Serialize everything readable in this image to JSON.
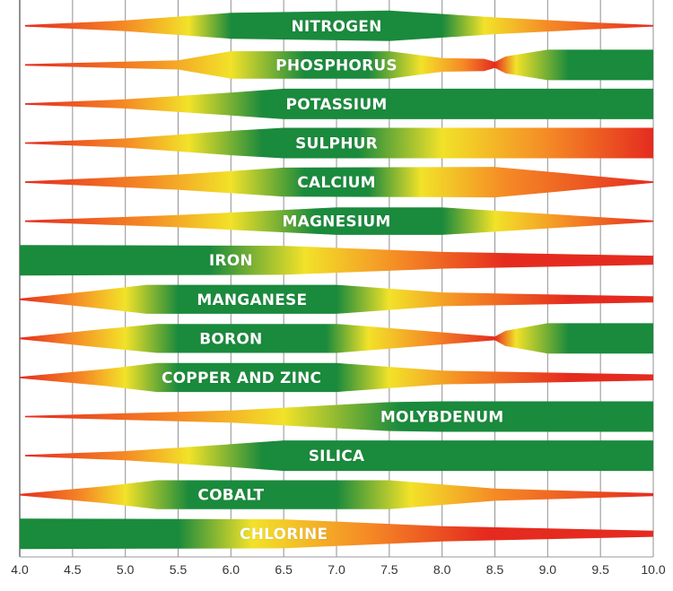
{
  "chart_data": {
    "type": "area",
    "title": "",
    "xlabel": "",
    "ylabel": "",
    "xlim": [
      4.0,
      10.0
    ],
    "x_ticks": [
      "4.0",
      "4.5",
      "5.0",
      "5.5",
      "6.0",
      "6.5",
      "7.0",
      "7.5",
      "8.0",
      "8.5",
      "9.0",
      "9.5",
      "10.0"
    ],
    "grid": true,
    "color_scale": {
      "red": "#e52b1f",
      "orange": "#f58a25",
      "yellow": "#f2e229",
      "green": "#1a8a3c"
    },
    "series": [
      {
        "name": "NITROGEN",
        "label_x": 7.0,
        "profile": [
          [
            4.05,
            0.05
          ],
          [
            5.0,
            0.35
          ],
          [
            6.0,
            0.85
          ],
          [
            7.5,
            1.0
          ],
          [
            8.5,
            0.55
          ],
          [
            9.5,
            0.2
          ],
          [
            10.0,
            0.05
          ]
        ],
        "colors": [
          [
            4.05,
            "#e52b1f"
          ],
          [
            5.0,
            "#f58a25"
          ],
          [
            5.6,
            "#f2e229"
          ],
          [
            6.0,
            "#1a8a3c"
          ],
          [
            8.0,
            "#1a8a3c"
          ],
          [
            8.4,
            "#f2e229"
          ],
          [
            9.0,
            "#f58a25"
          ],
          [
            10.0,
            "#e52b1f"
          ]
        ]
      },
      {
        "name": "PHOSPHORUS",
        "label_x": 7.0,
        "profile": [
          [
            4.05,
            0.05
          ],
          [
            5.5,
            0.3
          ],
          [
            6.0,
            0.9
          ],
          [
            7.5,
            0.9
          ],
          [
            8.0,
            0.45
          ],
          [
            8.4,
            0.4
          ],
          [
            8.5,
            0.2
          ],
          [
            8.6,
            0.55
          ],
          [
            9.0,
            1.0
          ],
          [
            10.0,
            1.0
          ]
        ],
        "colors": [
          [
            4.05,
            "#e52b1f"
          ],
          [
            5.2,
            "#f58a25"
          ],
          [
            6.0,
            "#f2e229"
          ],
          [
            6.7,
            "#1a8a3c"
          ],
          [
            7.3,
            "#1a8a3c"
          ],
          [
            7.8,
            "#f2e229"
          ],
          [
            8.2,
            "#f58a25"
          ],
          [
            8.5,
            "#e52b1f"
          ],
          [
            8.7,
            "#f2e229"
          ],
          [
            9.2,
            "#1a8a3c"
          ],
          [
            10.0,
            "#1a8a3c"
          ]
        ]
      },
      {
        "name": "POTASSIUM",
        "label_x": 7.0,
        "profile": [
          [
            4.05,
            0.05
          ],
          [
            5.0,
            0.3
          ],
          [
            6.0,
            0.75
          ],
          [
            6.5,
            1.0
          ],
          [
            10.0,
            1.0
          ]
        ],
        "colors": [
          [
            4.05,
            "#e52b1f"
          ],
          [
            5.0,
            "#f58a25"
          ],
          [
            5.6,
            "#f2e229"
          ],
          [
            6.3,
            "#1a8a3c"
          ],
          [
            10.0,
            "#1a8a3c"
          ]
        ]
      },
      {
        "name": "SULPHUR",
        "label_x": 7.0,
        "profile": [
          [
            4.05,
            0.05
          ],
          [
            5.0,
            0.3
          ],
          [
            6.0,
            0.8
          ],
          [
            6.5,
            1.0
          ],
          [
            10.0,
            1.0
          ]
        ],
        "colors": [
          [
            4.05,
            "#e52b1f"
          ],
          [
            5.0,
            "#f58a25"
          ],
          [
            5.6,
            "#f2e229"
          ],
          [
            6.3,
            "#1a8a3c"
          ],
          [
            7.2,
            "#1a8a3c"
          ],
          [
            8.0,
            "#f2e229"
          ],
          [
            9.0,
            "#f58a25"
          ],
          [
            10.0,
            "#e52b1f"
          ]
        ]
      },
      {
        "name": "CALCIUM",
        "label_x": 7.0,
        "profile": [
          [
            4.05,
            0.05
          ],
          [
            5.5,
            0.5
          ],
          [
            6.5,
            0.95
          ],
          [
            8.5,
            1.0
          ],
          [
            10.0,
            0.05
          ]
        ],
        "colors": [
          [
            4.05,
            "#e52b1f"
          ],
          [
            5.2,
            "#f58a25"
          ],
          [
            6.0,
            "#f2e229"
          ],
          [
            6.7,
            "#1a8a3c"
          ],
          [
            7.3,
            "#1a8a3c"
          ],
          [
            7.8,
            "#f2e229"
          ],
          [
            8.6,
            "#f58a25"
          ],
          [
            10.0,
            "#e52b1f"
          ]
        ]
      },
      {
        "name": "MAGNESIUM",
        "label_x": 7.0,
        "profile": [
          [
            4.05,
            0.05
          ],
          [
            5.5,
            0.4
          ],
          [
            7.0,
            0.9
          ],
          [
            8.0,
            0.9
          ],
          [
            10.0,
            0.05
          ]
        ],
        "colors": [
          [
            4.05,
            "#e52b1f"
          ],
          [
            5.2,
            "#f58a25"
          ],
          [
            6.0,
            "#f2e229"
          ],
          [
            6.8,
            "#1a8a3c"
          ],
          [
            8.0,
            "#1a8a3c"
          ],
          [
            8.5,
            "#f2e229"
          ],
          [
            9.2,
            "#f58a25"
          ],
          [
            10.0,
            "#e52b1f"
          ]
        ]
      },
      {
        "name": "IRON",
        "label_x": 6.0,
        "profile": [
          [
            4.0,
            1.0
          ],
          [
            6.5,
            0.95
          ],
          [
            8.0,
            0.55
          ],
          [
            10.0,
            0.3
          ]
        ],
        "colors": [
          [
            4.0,
            "#1a8a3c"
          ],
          [
            5.8,
            "#1a8a3c"
          ],
          [
            6.7,
            "#f2e229"
          ],
          [
            7.6,
            "#f58a25"
          ],
          [
            8.6,
            "#e52b1f"
          ],
          [
            10.0,
            "#e52b1f"
          ]
        ]
      },
      {
        "name": "MANGANESE",
        "label_x": 6.2,
        "profile": [
          [
            4.0,
            0.05
          ],
          [
            4.7,
            0.55
          ],
          [
            5.2,
            0.95
          ],
          [
            7.0,
            0.95
          ],
          [
            8.0,
            0.45
          ],
          [
            10.0,
            0.2
          ]
        ],
        "colors": [
          [
            4.0,
            "#e52b1f"
          ],
          [
            4.5,
            "#f58a25"
          ],
          [
            5.0,
            "#f2e229"
          ],
          [
            5.5,
            "#1a8a3c"
          ],
          [
            7.0,
            "#1a8a3c"
          ],
          [
            7.5,
            "#f2e229"
          ],
          [
            8.2,
            "#f58a25"
          ],
          [
            9.2,
            "#e52b1f"
          ],
          [
            10.0,
            "#e52b1f"
          ]
        ]
      },
      {
        "name": "BORON",
        "label_x": 6.0,
        "profile": [
          [
            4.0,
            0.05
          ],
          [
            4.7,
            0.55
          ],
          [
            5.3,
            0.95
          ],
          [
            7.0,
            0.95
          ],
          [
            8.5,
            0.12
          ],
          [
            8.6,
            0.5
          ],
          [
            9.0,
            1.0
          ],
          [
            10.0,
            1.0
          ]
        ],
        "colors": [
          [
            4.0,
            "#e52b1f"
          ],
          [
            4.5,
            "#f58a25"
          ],
          [
            5.0,
            "#f2e229"
          ],
          [
            5.5,
            "#1a8a3c"
          ],
          [
            6.9,
            "#1a8a3c"
          ],
          [
            7.3,
            "#f2e229"
          ],
          [
            7.9,
            "#f58a25"
          ],
          [
            8.5,
            "#e52b1f"
          ],
          [
            8.7,
            "#f2e229"
          ],
          [
            9.2,
            "#1a8a3c"
          ],
          [
            10.0,
            "#1a8a3c"
          ]
        ]
      },
      {
        "name": "COPPER AND ZINC",
        "label_x": 6.1,
        "profile": [
          [
            4.0,
            0.05
          ],
          [
            4.8,
            0.55
          ],
          [
            5.3,
            0.95
          ],
          [
            7.0,
            0.95
          ],
          [
            8.0,
            0.45
          ],
          [
            10.0,
            0.2
          ]
        ],
        "colors": [
          [
            4.0,
            "#e52b1f"
          ],
          [
            4.6,
            "#f58a25"
          ],
          [
            5.0,
            "#f2e229"
          ],
          [
            5.5,
            "#1a8a3c"
          ],
          [
            7.0,
            "#1a8a3c"
          ],
          [
            7.5,
            "#f2e229"
          ],
          [
            8.2,
            "#f58a25"
          ],
          [
            9.2,
            "#e52b1f"
          ],
          [
            10.0,
            "#e52b1f"
          ]
        ]
      },
      {
        "name": "MOLYBDENUM",
        "label_x": 8.0,
        "profile": [
          [
            4.05,
            0.05
          ],
          [
            6.0,
            0.4
          ],
          [
            7.5,
            0.95
          ],
          [
            8.0,
            1.0
          ],
          [
            10.0,
            1.0
          ]
        ],
        "colors": [
          [
            4.05,
            "#e52b1f"
          ],
          [
            5.5,
            "#f58a25"
          ],
          [
            6.5,
            "#f2e229"
          ],
          [
            7.6,
            "#1a8a3c"
          ],
          [
            10.0,
            "#1a8a3c"
          ]
        ]
      },
      {
        "name": "SILICA",
        "label_x": 7.0,
        "profile": [
          [
            4.05,
            0.05
          ],
          [
            5.0,
            0.3
          ],
          [
            6.0,
            0.75
          ],
          [
            6.5,
            1.0
          ],
          [
            10.0,
            1.0
          ]
        ],
        "colors": [
          [
            4.05,
            "#e52b1f"
          ],
          [
            5.0,
            "#f58a25"
          ],
          [
            5.6,
            "#f2e229"
          ],
          [
            6.3,
            "#1a8a3c"
          ],
          [
            10.0,
            "#1a8a3c"
          ]
        ]
      },
      {
        "name": "COBALT",
        "label_x": 6.0,
        "profile": [
          [
            4.0,
            0.05
          ],
          [
            4.8,
            0.55
          ],
          [
            5.3,
            0.95
          ],
          [
            7.5,
            0.95
          ],
          [
            8.5,
            0.4
          ],
          [
            10.0,
            0.1
          ]
        ],
        "colors": [
          [
            4.0,
            "#e52b1f"
          ],
          [
            4.6,
            "#f58a25"
          ],
          [
            5.0,
            "#f2e229"
          ],
          [
            5.6,
            "#1a8a3c"
          ],
          [
            7.0,
            "#1a8a3c"
          ],
          [
            7.7,
            "#f2e229"
          ],
          [
            8.5,
            "#f58a25"
          ],
          [
            10.0,
            "#e52b1f"
          ]
        ]
      },
      {
        "name": "CHLORINE",
        "label_x": 6.5,
        "profile": [
          [
            4.0,
            1.0
          ],
          [
            6.5,
            0.95
          ],
          [
            8.0,
            0.5
          ],
          [
            10.0,
            0.2
          ]
        ],
        "colors": [
          [
            4.0,
            "#1a8a3c"
          ],
          [
            5.5,
            "#1a8a3c"
          ],
          [
            6.2,
            "#f2e229"
          ],
          [
            7.3,
            "#f58a25"
          ],
          [
            8.4,
            "#e52b1f"
          ],
          [
            10.0,
            "#e52b1f"
          ]
        ]
      }
    ]
  }
}
